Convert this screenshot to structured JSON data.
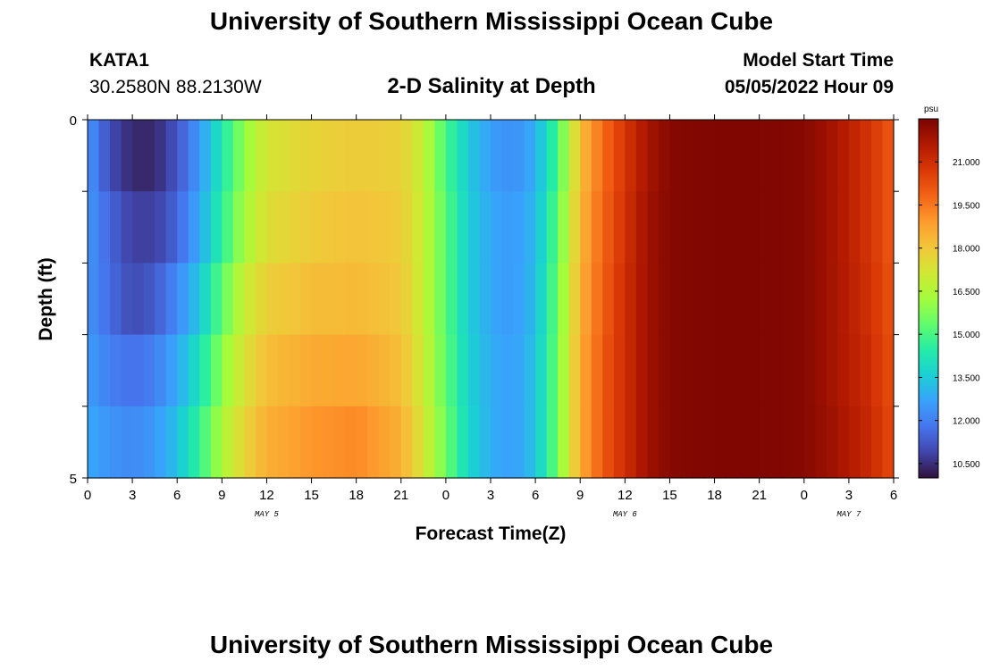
{
  "header": {
    "title": "University of Southern Mississippi Ocean Cube",
    "station": "KATA1",
    "coords": "30.2580N  88.2130W",
    "plot_title": "2-D Salinity at Depth",
    "model_start_label": "Model Start Time",
    "model_start_value": "05/05/2022 Hour 09",
    "footer_title": "University of Southern Mississippi Ocean Cube"
  },
  "colors": {
    "colormap": [
      "#30123b",
      "#4145ab",
      "#4675ed",
      "#39a2fc",
      "#1bcfd4",
      "#24eca6",
      "#61fc6c",
      "#a4fc3b",
      "#d1e834",
      "#f3c63a",
      "#fe9b2d",
      "#f36315",
      "#d93806",
      "#b11901",
      "#7a0402"
    ]
  },
  "chart_data": {
    "type": "heatmap",
    "xlabel": "Forecast Time(Z)",
    "ylabel": "Depth (ft)",
    "x_range_hours": [
      0,
      54
    ],
    "y_range_ft": [
      0,
      5
    ],
    "x_tick_labels": [
      "0",
      "3",
      "6",
      "9",
      "12",
      "15",
      "18",
      "21",
      "0",
      "3",
      "6",
      "9",
      "12",
      "15",
      "18",
      "21",
      "0",
      "3",
      "6"
    ],
    "y_tick_labels": [
      "0",
      "5"
    ],
    "day_labels": [
      {
        "label": "MAY 5",
        "hour": 12
      },
      {
        "label": "MAY 6",
        "hour": 36
      },
      {
        "label": "MAY 7",
        "hour": 51
      }
    ],
    "colorbar": {
      "unit": "psu",
      "min": 10.0,
      "max": 22.5,
      "tick_values": [
        10.5,
        12.0,
        13.5,
        15.0,
        16.5,
        18.0,
        19.5,
        21.0
      ],
      "tick_labels": [
        "10.500",
        "12.000",
        "13.500",
        "15.000",
        "16.500",
        "18.000",
        "19.500",
        "21.000"
      ]
    },
    "depth_layers_ft": [
      0,
      1,
      2,
      3,
      4,
      5
    ],
    "time_keyframes_hours": [
      0,
      1.5,
      3,
      4.5,
      6,
      7.5,
      9,
      10.5,
      12,
      15,
      18,
      21,
      22.5,
      24,
      25.5,
      27,
      28.5,
      30,
      31.5,
      33,
      34.5,
      36,
      37.5,
      39,
      42,
      45,
      48,
      50,
      52,
      54
    ],
    "salinity_psu": [
      [
        12.5,
        11.0,
        10.4,
        10.4,
        11.2,
        12.5,
        14.3,
        16.0,
        17.2,
        17.7,
        17.9,
        17.8,
        16.8,
        15.0,
        13.5,
        12.6,
        12.3,
        12.9,
        15.0,
        18.2,
        19.7,
        20.8,
        21.8,
        22.3,
        22.4,
        22.4,
        22.3,
        21.8,
        21.0,
        20.0
      ],
      [
        12.5,
        11.5,
        10.8,
        10.8,
        11.5,
        12.8,
        14.6,
        16.3,
        17.4,
        17.9,
        18.1,
        17.9,
        16.9,
        15.2,
        13.6,
        12.8,
        12.5,
        13.1,
        15.3,
        18.4,
        19.8,
        20.9,
        21.9,
        22.3,
        22.4,
        22.4,
        22.3,
        21.8,
        21.0,
        20.0
      ],
      [
        12.4,
        11.6,
        11.0,
        11.3,
        12.2,
        13.4,
        15.3,
        16.9,
        17.8,
        18.2,
        18.3,
        18.0,
        16.9,
        15.2,
        13.6,
        12.8,
        12.5,
        13.2,
        15.5,
        18.5,
        19.9,
        21.0,
        21.9,
        22.3,
        22.4,
        22.4,
        22.3,
        21.8,
        21.1,
        20.1
      ],
      [
        12.6,
        12.0,
        11.7,
        12.0,
        12.8,
        14.1,
        15.9,
        17.3,
        18.2,
        18.6,
        18.7,
        18.2,
        17.0,
        15.3,
        13.7,
        12.9,
        12.6,
        13.3,
        15.6,
        18.6,
        20.0,
        21.0,
        21.9,
        22.3,
        22.4,
        22.4,
        22.3,
        21.8,
        21.2,
        20.2
      ],
      [
        12.8,
        12.4,
        12.2,
        12.5,
        13.3,
        14.7,
        16.4,
        17.7,
        18.5,
        19.0,
        19.2,
        18.5,
        17.2,
        15.5,
        13.8,
        12.9,
        12.6,
        13.3,
        15.6,
        18.6,
        20.0,
        21.0,
        21.9,
        22.3,
        22.4,
        22.4,
        22.3,
        21.9,
        21.3,
        20.3
      ]
    ]
  }
}
